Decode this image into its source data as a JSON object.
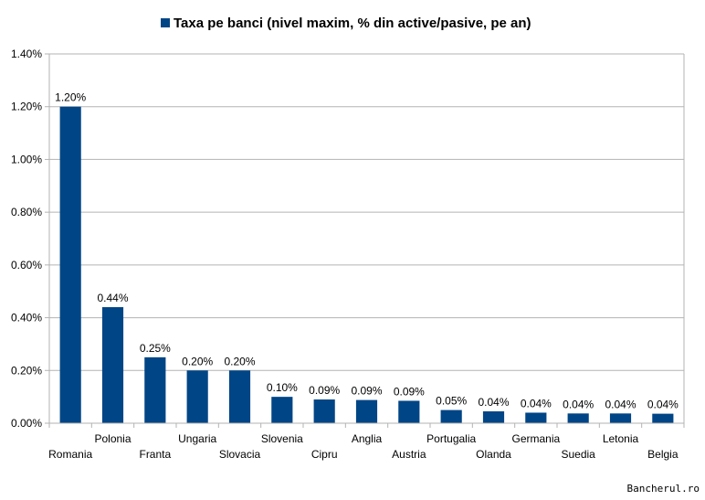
{
  "chart_data": {
    "type": "bar",
    "legend": {
      "label": "Taxa pe banci (nivel maxim, % din active/pasive, pe an)",
      "position": "top"
    },
    "categories": [
      "Romania",
      "Polonia",
      "Franta",
      "Ungaria",
      "Slovacia",
      "Slovenia",
      "Cipru",
      "Anglia",
      "Austria",
      "Portugalia",
      "Olanda",
      "Germania",
      "Suedia",
      "Letonia",
      "Belgia"
    ],
    "series": [
      {
        "name": "Taxa pe banci (nivel maxim, % din active/pasive, pe an)",
        "values": [
          1.2,
          0.44,
          0.25,
          0.2,
          0.2,
          0.1,
          0.09,
          0.09,
          0.09,
          0.05,
          0.04,
          0.04,
          0.04,
          0.04,
          0.04
        ],
        "plotted_values": [
          1.2,
          0.44,
          0.25,
          0.2,
          0.2,
          0.1,
          0.09,
          0.088,
          0.085,
          0.05,
          0.045,
          0.04,
          0.037,
          0.037,
          0.036
        ],
        "labels": [
          "1.20%",
          "0.44%",
          "0.25%",
          "0.20%",
          "0.20%",
          "0.10%",
          "0.09%",
          "0.09%",
          "0.09%",
          "0.05%",
          "0.04%",
          "0.04%",
          "0.04%",
          "0.04%",
          "0.04%"
        ],
        "color": "#004586"
      }
    ],
    "ylim": [
      0,
      1.4
    ],
    "yticks": [
      0,
      0.2,
      0.4,
      0.6,
      0.8,
      1.0,
      1.2,
      1.4
    ],
    "ytick_labels": [
      "0.00%",
      "0.20%",
      "0.40%",
      "0.60%",
      "0.80%",
      "1.00%",
      "1.20%",
      "1.40%"
    ],
    "grid": true,
    "xlabel": "",
    "ylabel": ""
  },
  "watermark": "Bancherul.ro",
  "colors": {
    "bar": "#004586",
    "grid": "#b3b3b3",
    "axis": "#b3b3b3"
  }
}
